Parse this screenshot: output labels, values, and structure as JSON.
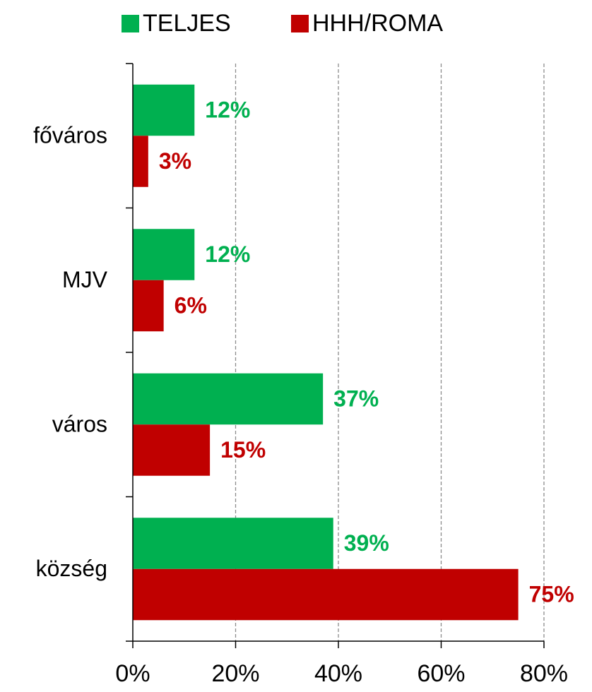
{
  "chart_data": {
    "type": "hbar",
    "categories": [
      "főváros",
      "MJV",
      "város",
      "község"
    ],
    "series": [
      {
        "name": "TELJES",
        "color": "#00b050",
        "values": [
          12,
          12,
          37,
          39
        ],
        "value_labels": [
          "12%",
          "12%",
          "37%",
          "39%"
        ]
      },
      {
        "name": "HHH/ROMA",
        "color": "#c00000",
        "values": [
          3,
          6,
          15,
          75
        ],
        "value_labels": [
          "3%",
          "6%",
          "15%",
          "75%"
        ]
      }
    ],
    "xlim": [
      0,
      80
    ],
    "xticks": [
      {
        "value": 0,
        "label": "0%"
      },
      {
        "value": 20,
        "label": "20%"
      },
      {
        "value": 40,
        "label": "40%"
      },
      {
        "value": 60,
        "label": "60%"
      },
      {
        "value": 80,
        "label": "80%"
      }
    ],
    "grid": true,
    "legend": "top"
  }
}
